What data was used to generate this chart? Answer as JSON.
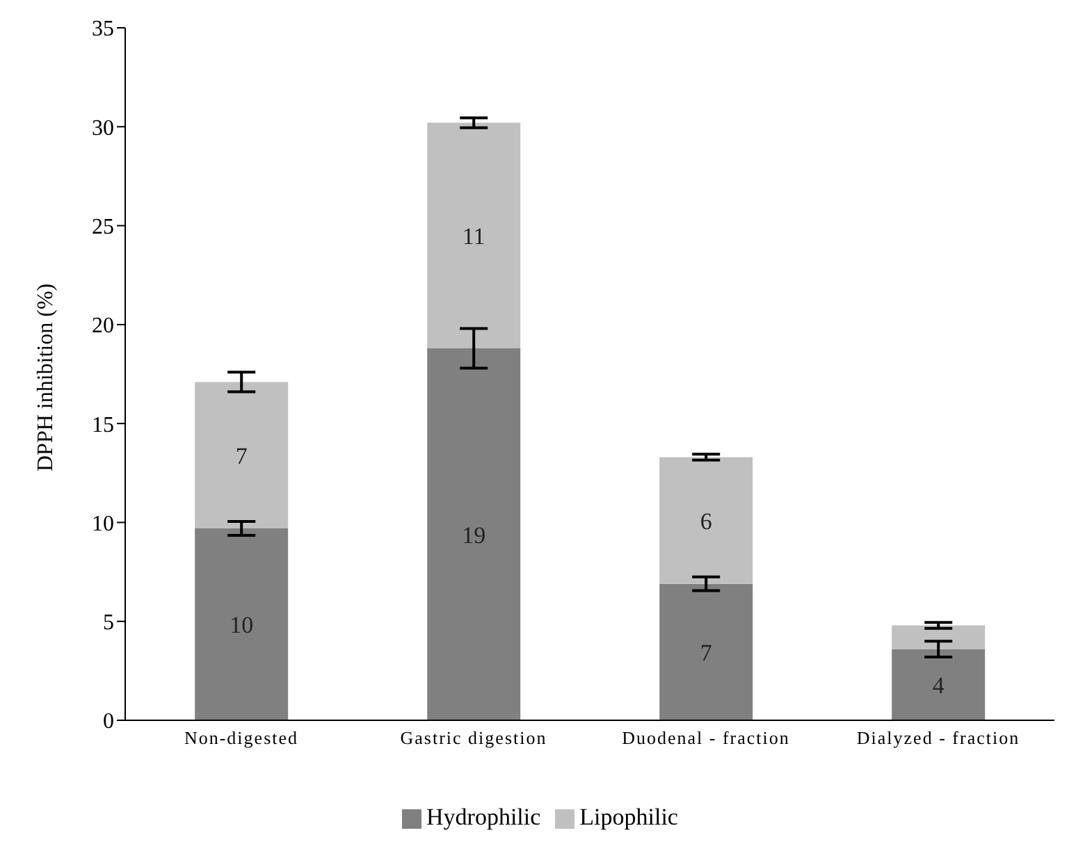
{
  "chart_data": {
    "type": "bar",
    "ylabel": "DPPH inhibition (%)",
    "categories": [
      "Non-digested",
      "Gastric digestion",
      "Duodenal - fraction",
      "Dialyzed - fraction"
    ],
    "stacked": true,
    "ylim": [
      0,
      35
    ],
    "yticks": [
      0,
      5,
      10,
      15,
      20,
      25,
      30,
      35
    ],
    "grid": false,
    "legend": "bottom",
    "series": [
      {
        "name": "Hydrophilic",
        "color": "#808080",
        "values": [
          9.7,
          18.8,
          6.9,
          3.6
        ],
        "errors": [
          0.35,
          1.0,
          0.35,
          0.4
        ],
        "value_labels": [
          "10",
          "19",
          "7",
          "4"
        ]
      },
      {
        "name": "Lipophilic",
        "color": "#c0c0c0",
        "values": [
          7.4,
          11.4,
          6.4,
          1.2
        ],
        "errors": [
          0.5,
          0.25,
          0.15,
          0.15
        ],
        "value_labels": [
          "7",
          "11",
          "6",
          null
        ]
      }
    ]
  }
}
